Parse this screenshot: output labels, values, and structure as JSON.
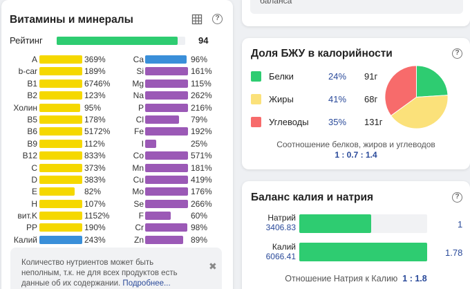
{
  "vitamins": {
    "title": "Витамины и минералы",
    "rating": {
      "label": "Рейтинг",
      "value": "94",
      "fraction": 0.94,
      "color": "#2ecc71"
    },
    "left": [
      {
        "name": "A",
        "pct": "369%",
        "fill": 1.0,
        "color": "#f5d800"
      },
      {
        "name": "b-car",
        "pct": "189%",
        "fill": 1.0,
        "color": "#f5d800"
      },
      {
        "name": "B1",
        "pct": "6746%",
        "fill": 1.0,
        "color": "#f5d800"
      },
      {
        "name": "B2",
        "pct": "123%",
        "fill": 1.0,
        "color": "#f5d800"
      },
      {
        "name": "Холин",
        "pct": "95%",
        "fill": 0.95,
        "color": "#f5d800"
      },
      {
        "name": "B5",
        "pct": "178%",
        "fill": 1.0,
        "color": "#f5d800"
      },
      {
        "name": "B6",
        "pct": "5172%",
        "fill": 1.0,
        "color": "#f5d800"
      },
      {
        "name": "B9",
        "pct": "112%",
        "fill": 1.0,
        "color": "#f5d800"
      },
      {
        "name": "B12",
        "pct": "833%",
        "fill": 1.0,
        "color": "#f5d800"
      },
      {
        "name": "C",
        "pct": "373%",
        "fill": 1.0,
        "color": "#f5d800"
      },
      {
        "name": "D",
        "pct": "383%",
        "fill": 1.0,
        "color": "#f5d800"
      },
      {
        "name": "E",
        "pct": "82%",
        "fill": 0.82,
        "color": "#f5d800"
      },
      {
        "name": "H",
        "pct": "107%",
        "fill": 1.0,
        "color": "#f5d800"
      },
      {
        "name": "вит.K",
        "pct": "1152%",
        "fill": 1.0,
        "color": "#f5d800"
      },
      {
        "name": "PP",
        "pct": "190%",
        "fill": 1.0,
        "color": "#f5d800"
      },
      {
        "name": "Калий",
        "pct": "243%",
        "fill": 1.0,
        "color": "#3a8fd9"
      }
    ],
    "right": [
      {
        "name": "Ca",
        "pct": "96%",
        "fill": 0.96,
        "color": "#3a8fd9"
      },
      {
        "name": "Si",
        "pct": "161%",
        "fill": 1.0,
        "color": "#9b59b6"
      },
      {
        "name": "Mg",
        "pct": "115%",
        "fill": 1.0,
        "color": "#9b59b6"
      },
      {
        "name": "Na",
        "pct": "262%",
        "fill": 1.0,
        "color": "#9b59b6"
      },
      {
        "name": "P",
        "pct": "216%",
        "fill": 1.0,
        "color": "#9b59b6"
      },
      {
        "name": "Cl",
        "pct": "79%",
        "fill": 0.79,
        "color": "#9b59b6"
      },
      {
        "name": "Fe",
        "pct": "192%",
        "fill": 1.0,
        "color": "#9b59b6"
      },
      {
        "name": "I",
        "pct": "25%",
        "fill": 0.25,
        "color": "#9b59b6"
      },
      {
        "name": "Co",
        "pct": "571%",
        "fill": 1.0,
        "color": "#9b59b6"
      },
      {
        "name": "Mn",
        "pct": "181%",
        "fill": 1.0,
        "color": "#9b59b6"
      },
      {
        "name": "Cu",
        "pct": "419%",
        "fill": 1.0,
        "color": "#9b59b6"
      },
      {
        "name": "Mo",
        "pct": "176%",
        "fill": 1.0,
        "color": "#9b59b6"
      },
      {
        "name": "Se",
        "pct": "266%",
        "fill": 1.0,
        "color": "#9b59b6"
      },
      {
        "name": "F",
        "pct": "60%",
        "fill": 0.6,
        "color": "#9b59b6"
      },
      {
        "name": "Cr",
        "pct": "98%",
        "fill": 0.98,
        "color": "#9b59b6"
      },
      {
        "name": "Zn",
        "pct": "89%",
        "fill": 0.89,
        "color": "#9b59b6"
      }
    ],
    "note": {
      "text": "Количество нутриентов может быть неполным, т.к. не для всех продуктов есть данные об их содержании. ",
      "link": "Подробнее..."
    },
    "icons": {
      "table": "table-icon",
      "help": "help-icon",
      "close": "close-icon"
    }
  },
  "top_card": {
    "text": "баланса"
  },
  "macros": {
    "title": "Доля БЖУ в калорийности",
    "rows": [
      {
        "name": "Белки",
        "pct": "24%",
        "grams": "91г",
        "color": "#2ecc71",
        "share": 0.24
      },
      {
        "name": "Жиры",
        "pct": "41%",
        "grams": "68г",
        "color": "#fbe17a",
        "share": 0.41
      },
      {
        "name": "Углеводы",
        "pct": "35%",
        "grams": "131г",
        "color": "#f76b6b",
        "share": 0.35
      }
    ],
    "caption": "Соотношение белков, жиров и углеводов",
    "ratio": "1 : 0.7 : 1.4"
  },
  "kna": {
    "title": "Баланс калия и натрия",
    "sodium": {
      "label": "Натрий",
      "value": "3406.83",
      "ratio": "1",
      "fill": 0.56
    },
    "potassium": {
      "label": "Калий",
      "value": "6066.41",
      "ratio": "1.78",
      "fill": 1.0
    },
    "caption": "Отношение Натрия к Калию",
    "caption_ratio": "1 : 1.8"
  }
}
